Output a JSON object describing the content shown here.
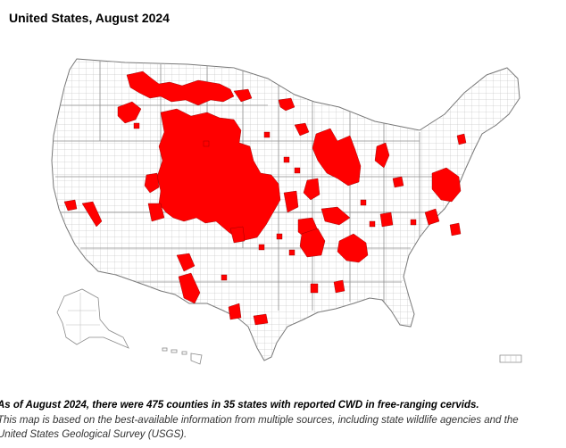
{
  "title": "United States, August 2024",
  "caption": {
    "summary": "As of August 2024, there were 475 counties in 35 states with reported CWD in free-ranging cervids.",
    "note_line1": "This map is based on the best-available information from multiple sources, including state wildlife agencies and the",
    "note_line2": "United States Geological Survey (USGS)."
  },
  "map": {
    "counties_reported": 475,
    "states_reported": 35,
    "highlight_color": "#ff0000",
    "border_color": "#9a9a9a",
    "background_color": "#ffffff"
  }
}
